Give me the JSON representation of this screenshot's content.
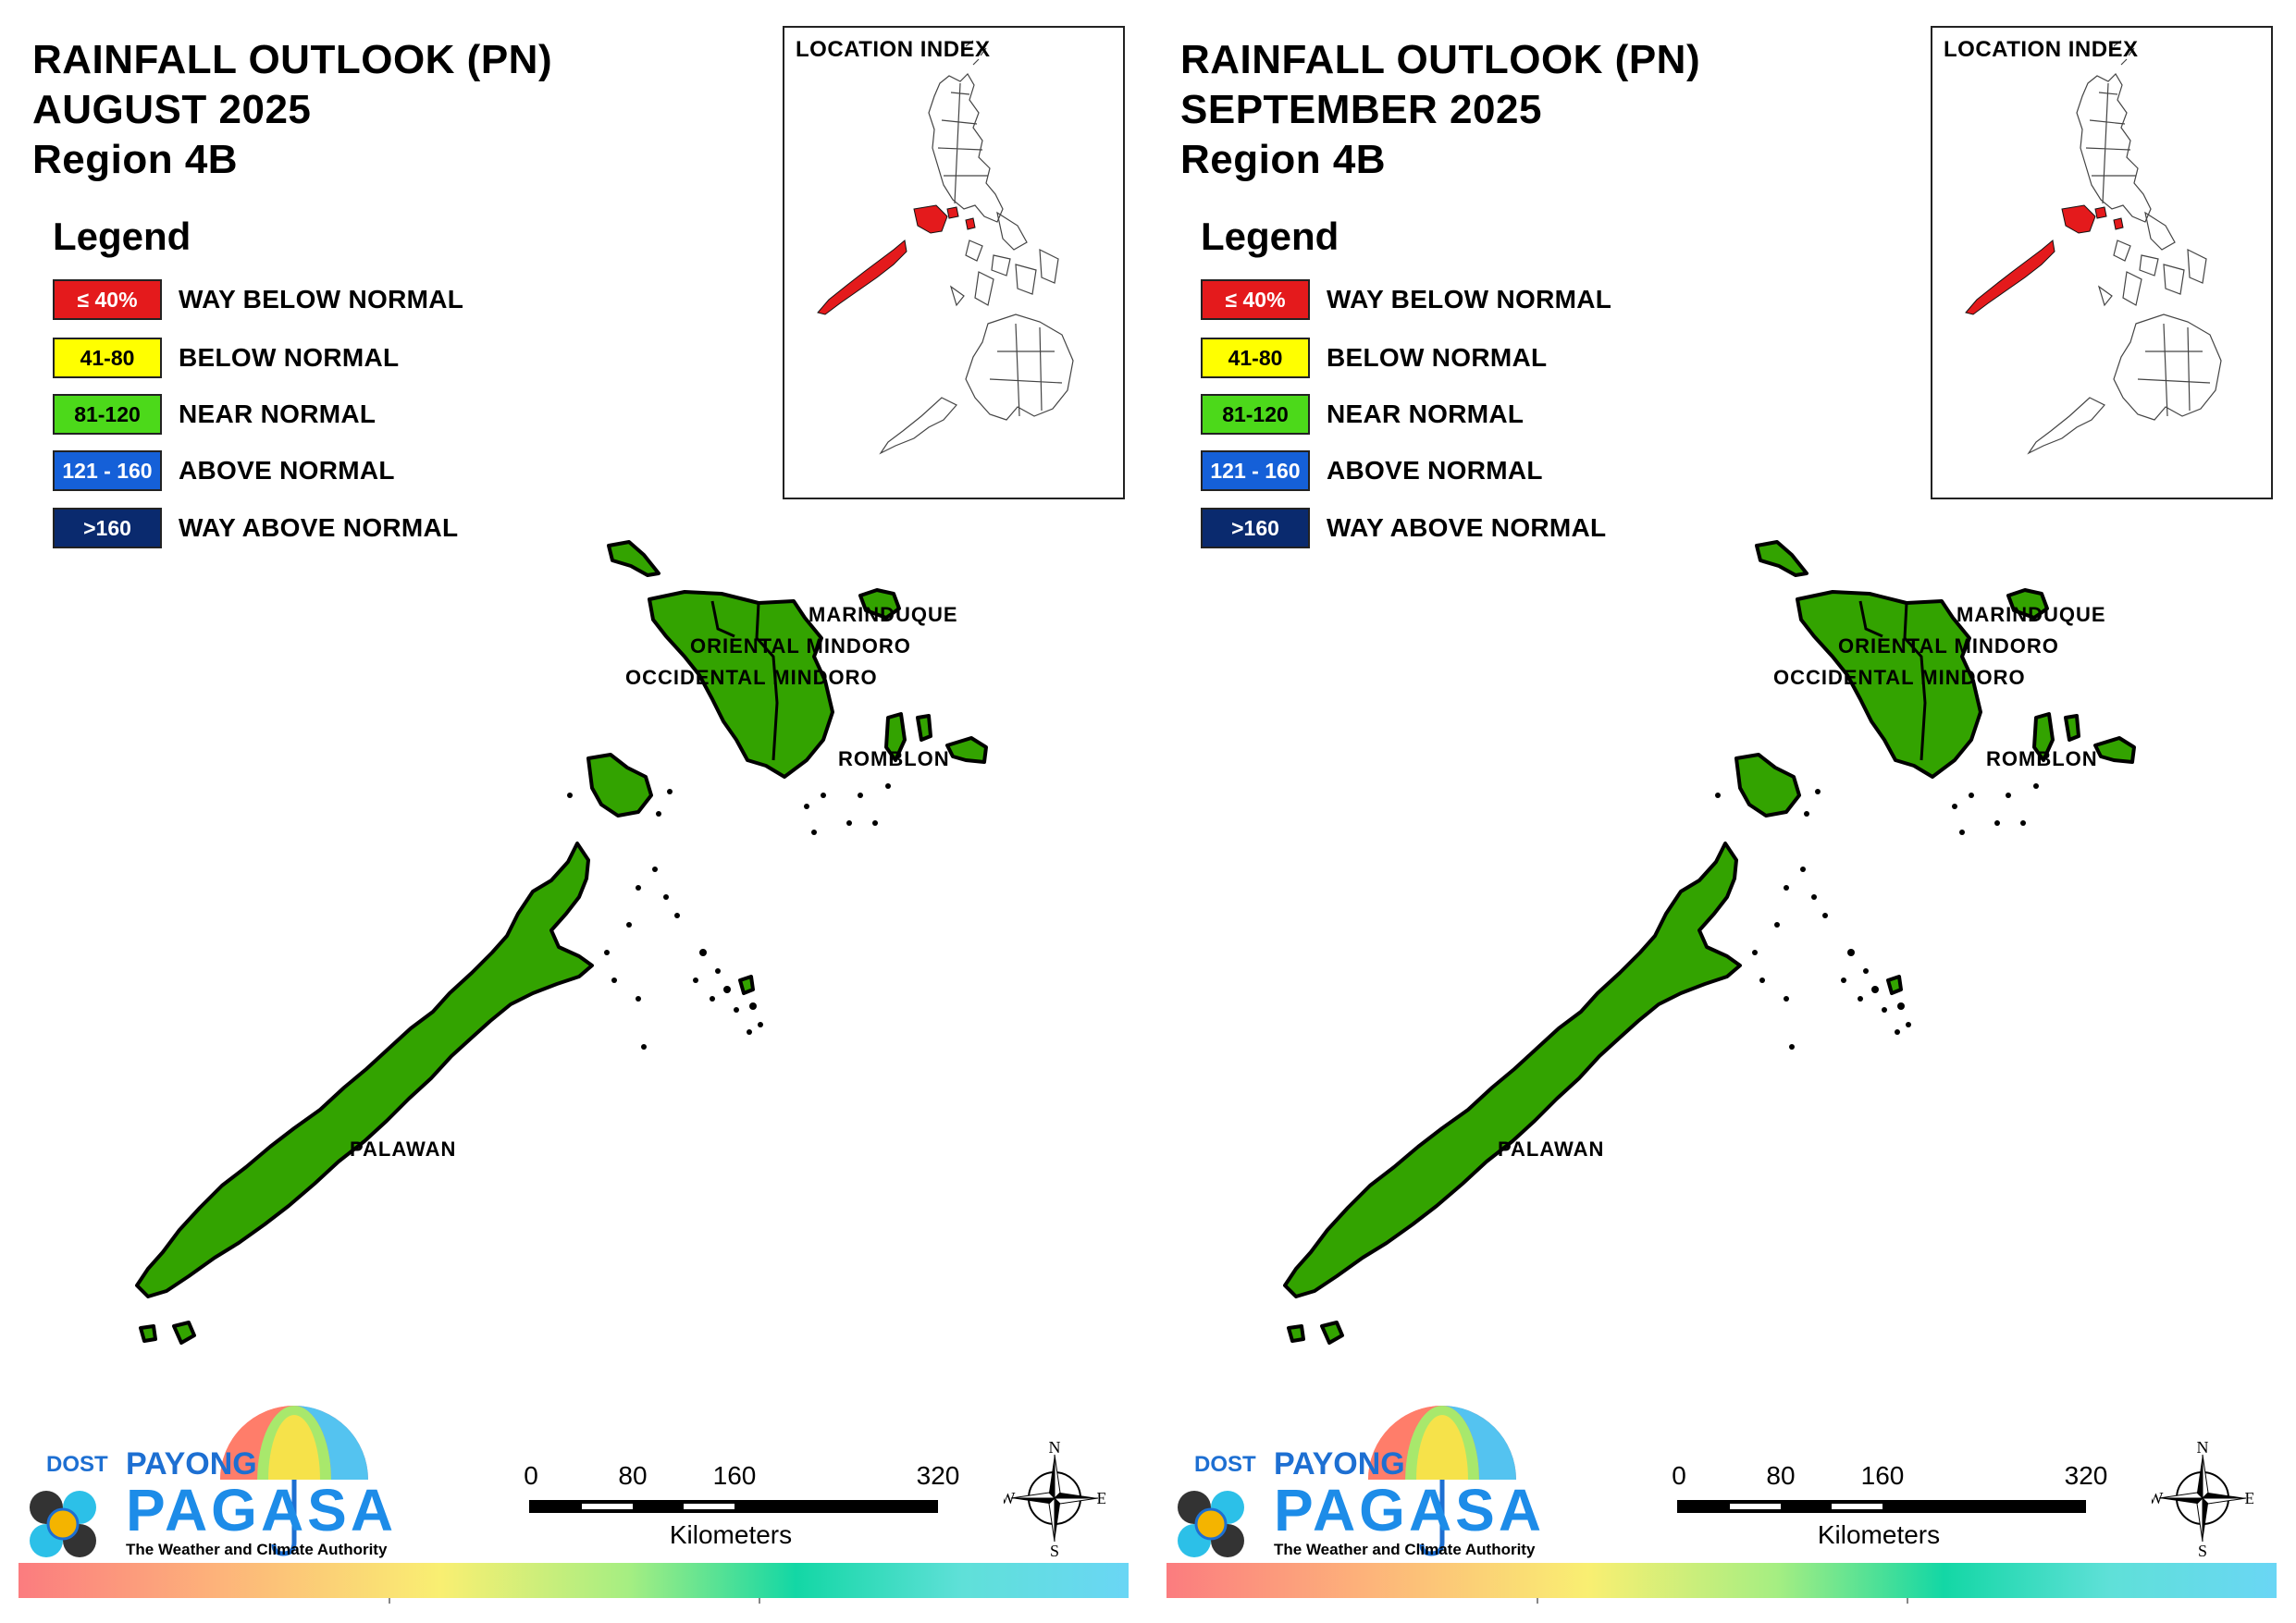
{
  "panels": [
    {
      "title_line1": "RAINFALL OUTLOOK (PN)",
      "title_line2": "AUGUST 2025",
      "title_line3": "Region 4B"
    },
    {
      "title_line1": "RAINFALL OUTLOOK (PN)",
      "title_line2": "SEPTEMBER 2025",
      "title_line3": "Region 4B"
    }
  ],
  "legend": {
    "title": "Legend",
    "items": [
      {
        "range": "≤ 40%",
        "label": "WAY BELOW NORMAL",
        "color": "#e41a1c",
        "text_color": "#ffffff"
      },
      {
        "range": "41-80",
        "label": "BELOW NORMAL",
        "color": "#ffff00",
        "text_color": "#000000"
      },
      {
        "range": "81-120",
        "label": "NEAR NORMAL",
        "color": "#4cd91a",
        "text_color": "#000000"
      },
      {
        "range": "121 - 160",
        "label": "ABOVE NORMAL",
        "color": "#1560d8",
        "text_color": "#ffffff"
      },
      {
        "range": ">160",
        "label": "WAY ABOVE NORMAL",
        "color": "#0a2a6e",
        "text_color": "#ffffff"
      }
    ]
  },
  "inset": {
    "title": "LOCATION INDEX",
    "highlight_color": "#e41a1c"
  },
  "map": {
    "fill_color": "#33a300",
    "labels": {
      "marinduque": "MARINDUQUE",
      "oriental_mindoro": "ORIENTAL MINDORO",
      "occidental_mindoro": "OCCIDENTAL MINDORO",
      "romblon": "ROMBLON",
      "palawan": "PALAWAN"
    }
  },
  "logo": {
    "dost": "DOST",
    "payong": "PAYONG",
    "pagasa": "PAGASA",
    "tagline": "The Weather and Climate Authority"
  },
  "scale_bar": {
    "ticks": [
      "0",
      "80",
      "160",
      "320"
    ],
    "unit": "Kilometers"
  },
  "compass": {
    "n": "N",
    "s": "S",
    "e": "E",
    "w": "W"
  }
}
